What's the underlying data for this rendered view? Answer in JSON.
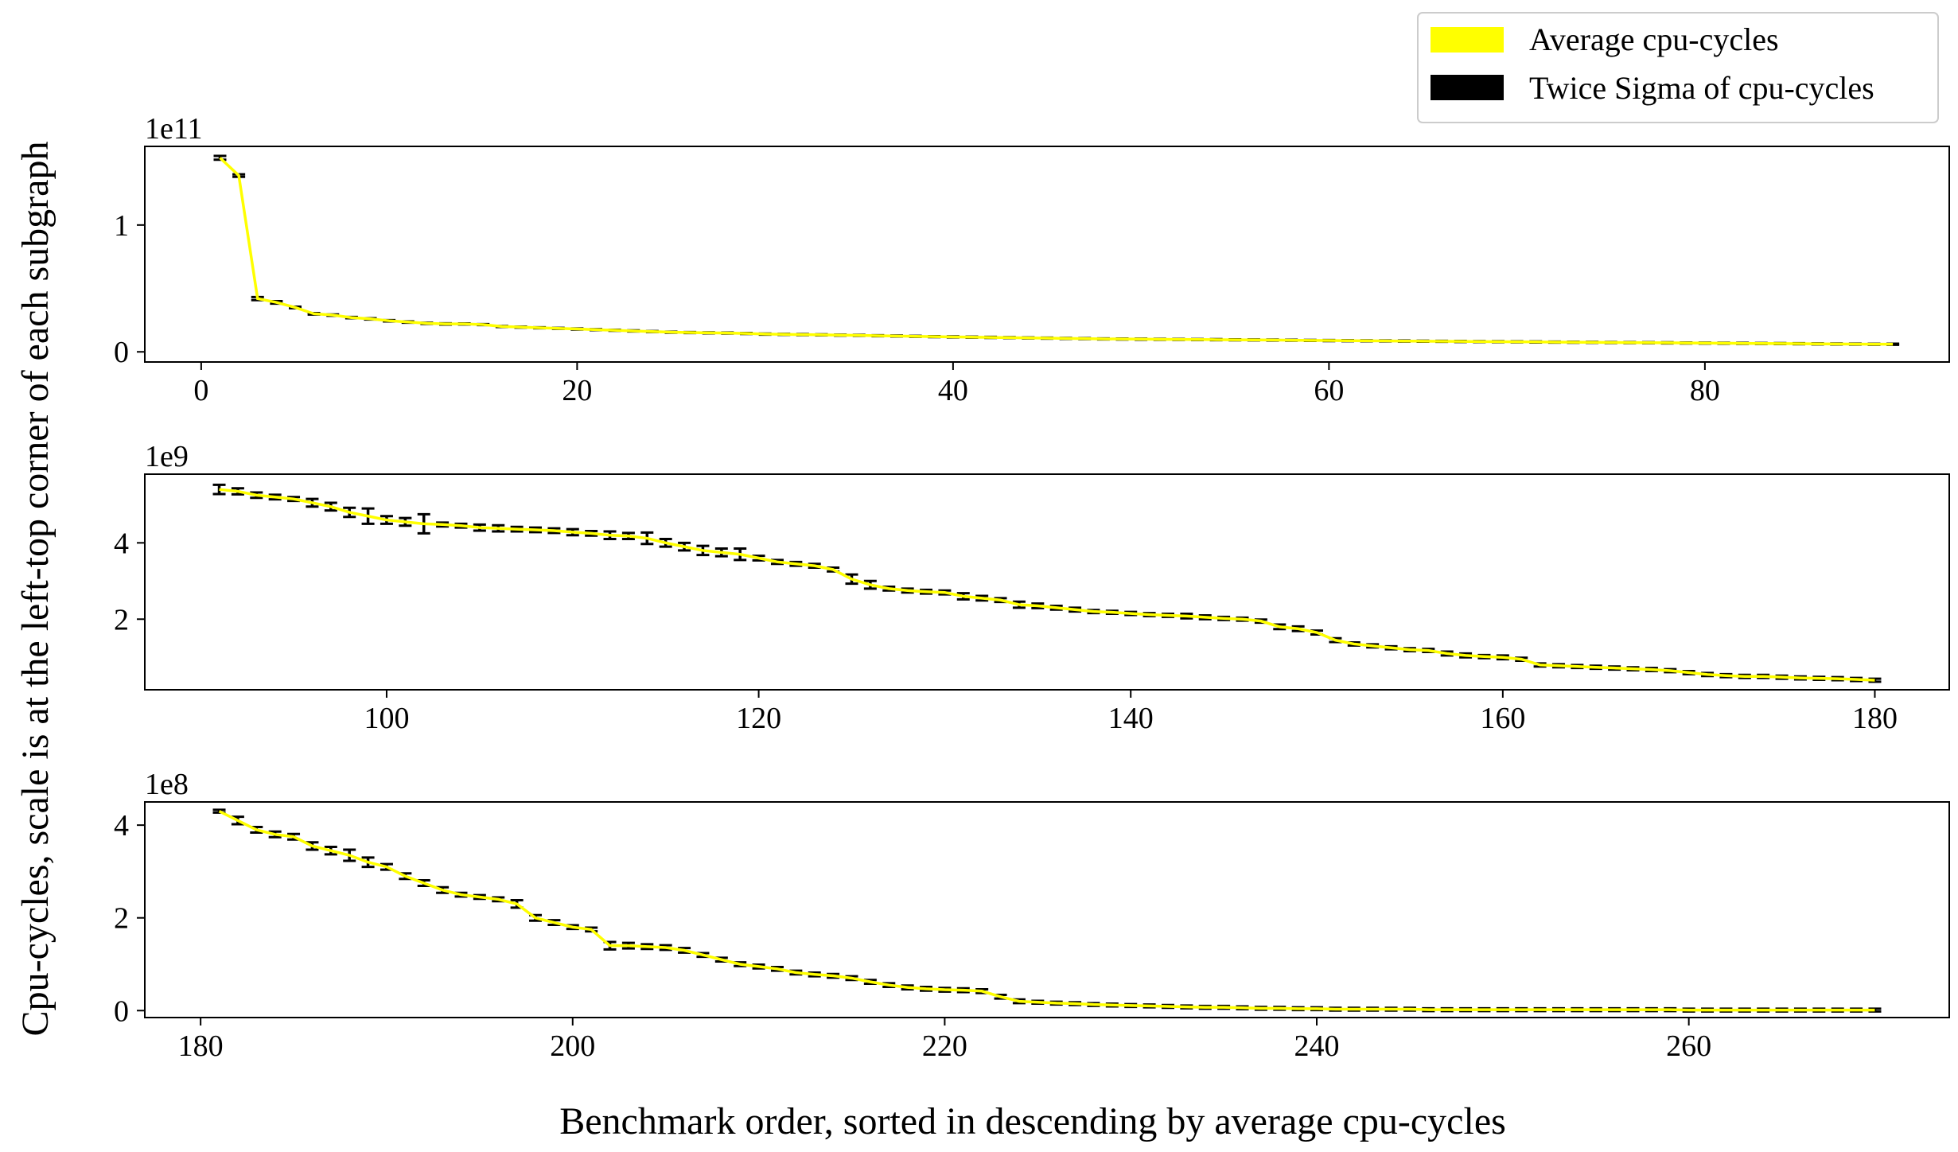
{
  "chart_data": {
    "type": "line",
    "xlabel": "Benchmark order, sorted in descending by average cpu-cycles",
    "ylabel": "Cpu-cycles, scale is at the left-top corner of each subgraph",
    "legend": {
      "placement": "top-right",
      "entries": [
        {
          "label": "Average cpu-cycles",
          "color": "#ffff00"
        },
        {
          "label": "Twice Sigma of cpu-cycles",
          "color": "#000000"
        }
      ]
    },
    "mean_color": "#ffff00",
    "error_color": "#000000",
    "subplots": [
      {
        "scale_label": "1e11",
        "xlim": [
          -3,
          93
        ],
        "ylim": [
          -0.08,
          1.62
        ],
        "xticks": [
          0,
          20,
          40,
          60,
          80
        ],
        "xtick_labels": [
          "0",
          "20",
          "40",
          "60",
          "80"
        ],
        "yticks": [
          0,
          1
        ],
        "ytick_labels": [
          "0",
          "1"
        ],
        "x_start": 1,
        "values": [
          1.53,
          1.39,
          0.42,
          0.39,
          0.35,
          0.3,
          0.29,
          0.27,
          0.26,
          0.245,
          0.235,
          0.225,
          0.22,
          0.22,
          0.215,
          0.2,
          0.195,
          0.19,
          0.185,
          0.18,
          0.175,
          0.17,
          0.165,
          0.16,
          0.155,
          0.152,
          0.15,
          0.148,
          0.145,
          0.14,
          0.138,
          0.136,
          0.134,
          0.132,
          0.13,
          0.127,
          0.125,
          0.122,
          0.12,
          0.118,
          0.116,
          0.114,
          0.112,
          0.11,
          0.108,
          0.106,
          0.104,
          0.102,
          0.101,
          0.1,
          0.099,
          0.098,
          0.097,
          0.096,
          0.095,
          0.094,
          0.093,
          0.092,
          0.09,
          0.089,
          0.088,
          0.087,
          0.086,
          0.085,
          0.084,
          0.083,
          0.082,
          0.081,
          0.08,
          0.079,
          0.078,
          0.077,
          0.076,
          0.075,
          0.074,
          0.073,
          0.072,
          0.071,
          0.07,
          0.069,
          0.068,
          0.067,
          0.066,
          0.065,
          0.064,
          0.063,
          0.062,
          0.061,
          0.06,
          0.06
        ],
        "errors": [
          0.015,
          0.01,
          0.012,
          0.01,
          0.006,
          0.006,
          0.005,
          0.005,
          0.005,
          0.005,
          0.005,
          0.005,
          0.005,
          0.004,
          0.004,
          0.004,
          0.004,
          0.004,
          0.004,
          0.004,
          0.004,
          0.004,
          0.004,
          0.004,
          0.004,
          0.004,
          0.004,
          0.004,
          0.004,
          0.004,
          0.004,
          0.004,
          0.004,
          0.004,
          0.004,
          0.004,
          0.004,
          0.004,
          0.004,
          0.004,
          0.004,
          0.004,
          0.004,
          0.004,
          0.004,
          0.004,
          0.004,
          0.004,
          0.004,
          0.004,
          0.004,
          0.004,
          0.004,
          0.004,
          0.004,
          0.004,
          0.004,
          0.004,
          0.004,
          0.004,
          0.004,
          0.004,
          0.004,
          0.004,
          0.004,
          0.004,
          0.004,
          0.004,
          0.004,
          0.004,
          0.004,
          0.004,
          0.004,
          0.004,
          0.004,
          0.004,
          0.004,
          0.004,
          0.004,
          0.004,
          0.004,
          0.004,
          0.004,
          0.004,
          0.004,
          0.004,
          0.004,
          0.004,
          0.004,
          0.004
        ]
      },
      {
        "scale_label": "1e9",
        "xlim": [
          87,
          184
        ],
        "ylim": [
          0.15,
          5.8
        ],
        "xticks": [
          100,
          120,
          140,
          160,
          180
        ],
        "xtick_labels": [
          "100",
          "120",
          "140",
          "160",
          "180"
        ],
        "yticks": [
          2,
          4
        ],
        "ytick_labels": [
          "2",
          "4"
        ],
        "x_start": 91,
        "values": [
          5.4,
          5.35,
          5.25,
          5.2,
          5.15,
          5.05,
          4.95,
          4.8,
          4.7,
          4.6,
          4.55,
          4.5,
          4.48,
          4.45,
          4.4,
          4.38,
          4.36,
          4.34,
          4.32,
          4.28,
          4.25,
          4.2,
          4.18,
          4.12,
          4.0,
          3.9,
          3.8,
          3.75,
          3.7,
          3.6,
          3.5,
          3.45,
          3.4,
          3.3,
          3.05,
          2.9,
          2.8,
          2.75,
          2.72,
          2.7,
          2.6,
          2.55,
          2.5,
          2.38,
          2.35,
          2.3,
          2.25,
          2.2,
          2.18,
          2.15,
          2.12,
          2.1,
          2.08,
          2.05,
          2.02,
          2.0,
          1.95,
          1.8,
          1.75,
          1.65,
          1.45,
          1.35,
          1.3,
          1.25,
          1.2,
          1.18,
          1.1,
          1.05,
          1.02,
          1.0,
          0.95,
          0.8,
          0.78,
          0.76,
          0.74,
          0.72,
          0.7,
          0.68,
          0.65,
          0.6,
          0.55,
          0.52,
          0.5,
          0.5,
          0.48,
          0.46,
          0.45,
          0.44,
          0.42,
          0.4
        ],
        "errors": [
          0.12,
          0.08,
          0.07,
          0.06,
          0.05,
          0.1,
          0.1,
          0.12,
          0.2,
          0.1,
          0.1,
          0.25,
          0.05,
          0.05,
          0.08,
          0.08,
          0.06,
          0.06,
          0.06,
          0.08,
          0.06,
          0.1,
          0.08,
          0.15,
          0.1,
          0.1,
          0.12,
          0.1,
          0.15,
          0.06,
          0.05,
          0.05,
          0.05,
          0.05,
          0.12,
          0.1,
          0.05,
          0.05,
          0.05,
          0.05,
          0.08,
          0.06,
          0.05,
          0.08,
          0.06,
          0.05,
          0.05,
          0.04,
          0.04,
          0.04,
          0.04,
          0.04,
          0.06,
          0.05,
          0.04,
          0.04,
          0.04,
          0.06,
          0.06,
          0.05,
          0.05,
          0.04,
          0.04,
          0.04,
          0.04,
          0.04,
          0.05,
          0.05,
          0.04,
          0.05,
          0.04,
          0.04,
          0.04,
          0.04,
          0.04,
          0.04,
          0.04,
          0.04,
          0.04,
          0.04,
          0.04,
          0.04,
          0.04,
          0.04,
          0.04,
          0.04,
          0.04,
          0.04,
          0.04,
          0.04
        ]
      },
      {
        "scale_label": "1e8",
        "xlim": [
          177,
          274
        ],
        "ylim": [
          -0.15,
          4.5
        ],
        "xticks": [
          180,
          200,
          220,
          240,
          260
        ],
        "xtick_labels": [
          "180",
          "200",
          "220",
          "240",
          "260"
        ],
        "yticks": [
          0,
          2,
          4
        ],
        "ytick_labels": [
          "0",
          "2",
          "4"
        ],
        "x_start": 181,
        "values": [
          4.3,
          4.1,
          3.9,
          3.8,
          3.75,
          3.55,
          3.45,
          3.35,
          3.2,
          3.1,
          2.9,
          2.75,
          2.6,
          2.5,
          2.45,
          2.4,
          2.3,
          2.0,
          1.9,
          1.8,
          1.75,
          1.4,
          1.4,
          1.38,
          1.36,
          1.3,
          1.2,
          1.1,
          1.0,
          0.95,
          0.9,
          0.82,
          0.78,
          0.75,
          0.7,
          0.62,
          0.55,
          0.5,
          0.47,
          0.45,
          0.44,
          0.42,
          0.3,
          0.2,
          0.18,
          0.16,
          0.15,
          0.13,
          0.12,
          0.11,
          0.1,
          0.09,
          0.08,
          0.07,
          0.07,
          0.06,
          0.05,
          0.05,
          0.04,
          0.04,
          0.03,
          0.03,
          0.03,
          0.03,
          0.03,
          0.02,
          0.02,
          0.02,
          0.02,
          0.02,
          0.02,
          0.02,
          0.02,
          0.02,
          0.02,
          0.02,
          0.02,
          0.02,
          0.02,
          0.01,
          0.01,
          0.01,
          0.01,
          0.01,
          0.01,
          0.01,
          0.01,
          0.01,
          0.01,
          0.01
        ],
        "errors": [
          0.03,
          0.08,
          0.06,
          0.06,
          0.06,
          0.08,
          0.08,
          0.12,
          0.1,
          0.06,
          0.06,
          0.06,
          0.06,
          0.04,
          0.04,
          0.04,
          0.08,
          0.06,
          0.05,
          0.04,
          0.04,
          0.08,
          0.06,
          0.05,
          0.05,
          0.05,
          0.04,
          0.04,
          0.04,
          0.04,
          0.04,
          0.04,
          0.04,
          0.04,
          0.04,
          0.04,
          0.04,
          0.04,
          0.04,
          0.04,
          0.04,
          0.04,
          0.04,
          0.04,
          0.03,
          0.03,
          0.03,
          0.03,
          0.03,
          0.03,
          0.03,
          0.03,
          0.03,
          0.03,
          0.03,
          0.03,
          0.03,
          0.03,
          0.03,
          0.03,
          0.03,
          0.03,
          0.03,
          0.03,
          0.03,
          0.03,
          0.03,
          0.03,
          0.03,
          0.03,
          0.03,
          0.03,
          0.03,
          0.03,
          0.03,
          0.03,
          0.03,
          0.03,
          0.03,
          0.03,
          0.03,
          0.03,
          0.03,
          0.03,
          0.03,
          0.03,
          0.03,
          0.03,
          0.03,
          0.03
        ]
      }
    ]
  }
}
